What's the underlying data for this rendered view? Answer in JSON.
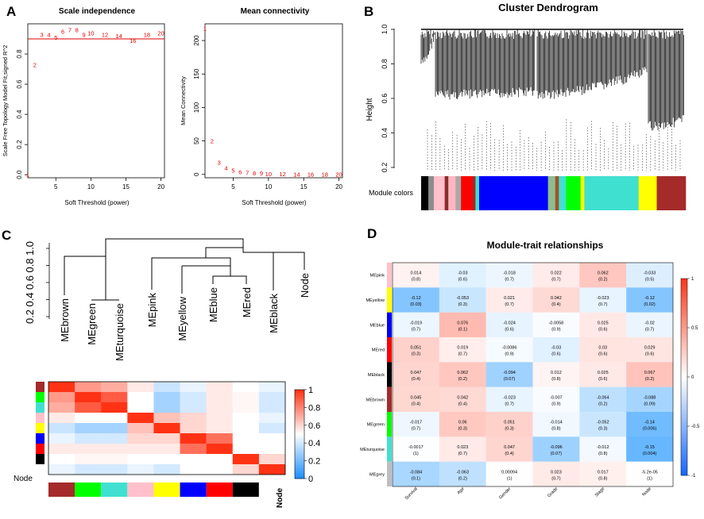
{
  "panels": {
    "A": {
      "letter": "A",
      "scale_independence": {
        "title": "Scale independence",
        "xlabel": "Soft Threshold (power)",
        "ylabel": "Scale Free Topology Model Fit,signed R^2"
      },
      "mean_connectivity": {
        "title": "Mean connectivity",
        "xlabel": "Soft Threshold (power)",
        "ylabel": "Mean Connectivity"
      }
    },
    "B": {
      "letter": "B",
      "title": "Cluster Dendrogram",
      "ylabel": "Height",
      "colors_label": "Module colors",
      "yticks": [
        "1.0",
        "0.8",
        "0.6",
        "0.4",
        "0.2"
      ]
    },
    "C": {
      "letter": "C",
      "dendro_yticks": [
        "1.0",
        "0.8",
        "0.6",
        "0.4",
        "0.2"
      ],
      "leaves": [
        "MEbrown",
        "MEgreen",
        "MEturquoise",
        "MEpink",
        "MEyellow",
        "MEblue",
        "MEred",
        "MEblack",
        "Node"
      ],
      "row_label": "Node",
      "col_label": "Node",
      "colorbar_ticks": [
        "1",
        "0.8",
        "0.6",
        "0.4",
        "0.2",
        "0"
      ]
    },
    "D": {
      "letter": "D",
      "title": "Module-trait relationships",
      "colorbar_ticks": [
        "1",
        "0.5",
        "0",
        "-0.5",
        "-1"
      ]
    }
  },
  "chart_data": [
    {
      "id": "scale_independence",
      "type": "scatter",
      "title": "Scale independence",
      "xlabel": "Soft Threshold (power)",
      "ylabel": "Scale Free Topology Model Fit,signed R^2",
      "xlim": [
        1,
        20.5
      ],
      "ylim": [
        -0.02,
        1.0
      ],
      "xticks": [
        5,
        10,
        15,
        20
      ],
      "yticks": [
        0.0,
        0.2,
        0.4,
        0.6,
        0.8
      ],
      "points": [
        {
          "label": "1",
          "x": 1,
          "y": 0.0
        },
        {
          "label": "2",
          "x": 2,
          "y": 0.73
        },
        {
          "label": "3",
          "x": 3,
          "y": 0.93
        },
        {
          "label": "4",
          "x": 4,
          "y": 0.93
        },
        {
          "label": "5",
          "x": 5,
          "y": 0.91
        },
        {
          "label": "6",
          "x": 6,
          "y": 0.95
        },
        {
          "label": "7",
          "x": 7,
          "y": 0.96
        },
        {
          "label": "8",
          "x": 8,
          "y": 0.96
        },
        {
          "label": "9",
          "x": 9,
          "y": 0.93
        },
        {
          "label": "10",
          "x": 10,
          "y": 0.94
        },
        {
          "label": "12",
          "x": 12,
          "y": 0.93
        },
        {
          "label": "14",
          "x": 14,
          "y": 0.92
        },
        {
          "label": "16",
          "x": 16,
          "y": 0.89
        },
        {
          "label": "18",
          "x": 18,
          "y": 0.93
        },
        {
          "label": "20",
          "x": 20,
          "y": 0.94
        }
      ],
      "hline": 0.9
    },
    {
      "id": "mean_connectivity",
      "type": "scatter",
      "title": "Mean connectivity",
      "xlabel": "Soft Threshold (power)",
      "ylabel": "Mean Connectivity",
      "xlim": [
        1,
        20.5
      ],
      "ylim": [
        -5,
        225
      ],
      "xticks": [
        5,
        10,
        15,
        20
      ],
      "yticks": [
        0,
        50,
        100,
        150,
        200
      ],
      "points": [
        {
          "label": "1",
          "x": 1,
          "y": 218
        },
        {
          "label": "2",
          "x": 2,
          "y": 50
        },
        {
          "label": "3",
          "x": 3,
          "y": 18
        },
        {
          "label": "4",
          "x": 4,
          "y": 10
        },
        {
          "label": "5",
          "x": 5,
          "y": 6
        },
        {
          "label": "6",
          "x": 6,
          "y": 4
        },
        {
          "label": "7",
          "x": 7,
          "y": 3
        },
        {
          "label": "8",
          "x": 8,
          "y": 2
        },
        {
          "label": "9",
          "x": 9,
          "y": 2
        },
        {
          "label": "10",
          "x": 10,
          "y": 1
        },
        {
          "label": "12",
          "x": 12,
          "y": 1
        },
        {
          "label": "14",
          "x": 14,
          "y": 0.5
        },
        {
          "label": "16",
          "x": 16,
          "y": 0.5
        },
        {
          "label": "18",
          "x": 18,
          "y": 0.3
        },
        {
          "label": "20",
          "x": 20,
          "y": 0.2
        }
      ]
    },
    {
      "id": "module_colors",
      "type": "bar",
      "title": "Module colors",
      "segments": [
        {
          "color": "#000000",
          "w": 2
        },
        {
          "color": "#8c8c8c",
          "w": 1.5
        },
        {
          "color": "#ffc0cb",
          "w": 3
        },
        {
          "color": "#8b2d2d",
          "w": 1
        },
        {
          "color": "#ffb6c1",
          "w": 2
        },
        {
          "color": "#a9a9a9",
          "w": 1.5
        },
        {
          "color": "#ff0000",
          "w": 3
        },
        {
          "color": "#b22222",
          "w": 1
        },
        {
          "color": "#40e0d0",
          "w": 1
        },
        {
          "color": "#0000ff",
          "w": 19
        },
        {
          "color": "#8fbc8f",
          "w": 2
        },
        {
          "color": "#a0522d",
          "w": 1
        },
        {
          "color": "#40e0d0",
          "w": 2
        },
        {
          "color": "#00ff00",
          "w": 4
        },
        {
          "color": "#ffff00",
          "w": 1
        },
        {
          "color": "#40e0d0",
          "w": 15
        },
        {
          "color": "#ffff00",
          "w": 5
        },
        {
          "color": "#a52a2a",
          "w": 8
        }
      ]
    },
    {
      "id": "eigengene_adjacency",
      "type": "heatmap",
      "rows": [
        "brown",
        "green",
        "turquoise",
        "pink",
        "yellow",
        "blue",
        "red",
        "black",
        "Node"
      ],
      "row_colors": [
        "#a52a2a",
        "#00ff00",
        "#40e0d0",
        "#ffc0cb",
        "#ffff00",
        "#0000ff",
        "#ff0000",
        "#000000",
        "#ffffff"
      ],
      "values": [
        [
          1.0,
          0.75,
          0.7,
          0.55,
          0.38,
          0.45,
          0.55,
          0.5,
          0.45
        ],
        [
          0.75,
          1.0,
          0.9,
          0.5,
          0.3,
          0.4,
          0.55,
          0.52,
          0.4
        ],
        [
          0.7,
          0.9,
          1.0,
          0.5,
          0.3,
          0.4,
          0.55,
          0.52,
          0.4
        ],
        [
          0.55,
          0.5,
          0.5,
          1.0,
          0.65,
          0.6,
          0.55,
          0.5,
          0.45
        ],
        [
          0.38,
          0.3,
          0.3,
          0.65,
          1.0,
          0.6,
          0.55,
          0.5,
          0.4
        ],
        [
          0.45,
          0.4,
          0.4,
          0.6,
          0.6,
          1.0,
          0.85,
          0.5,
          0.5
        ],
        [
          0.55,
          0.55,
          0.55,
          0.55,
          0.55,
          0.85,
          1.0,
          0.5,
          0.5
        ],
        [
          0.5,
          0.52,
          0.52,
          0.5,
          0.5,
          0.5,
          0.5,
          1.0,
          0.6
        ],
        [
          0.45,
          0.4,
          0.4,
          0.45,
          0.4,
          0.5,
          0.5,
          0.6,
          1.0
        ]
      ],
      "zlim": [
        0,
        1
      ]
    },
    {
      "id": "module_trait",
      "type": "heatmap",
      "title": "Module-trait relationships",
      "rows": [
        "MEpink",
        "MEyellow",
        "MEblue",
        "MEred",
        "MEblack",
        "MEbrown",
        "MEgreen",
        "MEturquoise",
        "MEgrey"
      ],
      "row_colors": [
        "#ffc0cb",
        "#ffff00",
        "#0000ff",
        "#ff0000",
        "#000000",
        "#a52a2a",
        "#00ff00",
        "#40e0d0",
        "#bebebe"
      ],
      "cols": [
        "Survival",
        "Age",
        "Gender",
        "Grade",
        "Stage",
        "Node"
      ],
      "cells": [
        [
          [
            "0.014",
            "(0.8)"
          ],
          [
            "-0.03",
            "(0.6)"
          ],
          [
            "-0.018",
            "(0.7)"
          ],
          [
            "0.022",
            "(0.7)"
          ],
          [
            "0.062",
            "(0.2)"
          ],
          [
            "-0.033",
            "(0.5)"
          ]
        ],
        [
          [
            "-0.12",
            "(0.03)"
          ],
          [
            "-0.053",
            "(0.3)"
          ],
          [
            "0.021",
            "(0.7)"
          ],
          [
            "0.042",
            "(0.4)"
          ],
          [
            "-0.023",
            "(0.7)"
          ],
          [
            "-0.12",
            "(0.02)"
          ]
        ],
        [
          [
            "-0.019",
            "(0.7)"
          ],
          [
            "0.076",
            "(0.1)"
          ],
          [
            "-0.024",
            "(0.6)"
          ],
          [
            "-0.0058",
            "(0.9)"
          ],
          [
            "0.025",
            "(0.6)"
          ],
          [
            "-0.02",
            "(0.7)"
          ]
        ],
        [
          [
            "0.051",
            "(0.3)"
          ],
          [
            "0.019",
            "(0.7)"
          ],
          [
            "-0.0086",
            "(0.9)"
          ],
          [
            "-0.03",
            "(0.6)"
          ],
          [
            "0.03",
            "(0.6)"
          ],
          [
            "0.029",
            "(0.6)"
          ]
        ],
        [
          [
            "0.047",
            "(0.4)"
          ],
          [
            "0.062",
            "(0.2)"
          ],
          [
            "-0.094",
            "(0.07)"
          ],
          [
            "0.012",
            "(0.8)"
          ],
          [
            "0.025",
            "(0.6)"
          ],
          [
            "0.067",
            "(0.2)"
          ]
        ],
        [
          [
            "0.045",
            "(0.4)"
          ],
          [
            "0.042",
            "(0.4)"
          ],
          [
            "-0.023",
            "(0.7)"
          ],
          [
            "-0.007",
            "(0.9)"
          ],
          [
            "-0.064",
            "(0.2)"
          ],
          [
            "-0.088",
            "(0.09)"
          ]
        ],
        [
          [
            "-0.017",
            "(0.7)"
          ],
          [
            "0.06",
            "(0.3)"
          ],
          [
            "0.051",
            "(0.3)"
          ],
          [
            "-0.014",
            "(0.8)"
          ],
          [
            "-0.052",
            "(0.3)"
          ],
          [
            "-0.14",
            "(0.006)"
          ]
        ],
        [
          [
            "-0.0017",
            "(1)"
          ],
          [
            "0.023",
            "(0.7)"
          ],
          [
            "0.047",
            "(0.4)"
          ],
          [
            "-0.096",
            "(0.07)"
          ],
          [
            "-0.012",
            "(0.8)"
          ],
          [
            "-0.15",
            "(0.004)"
          ]
        ],
        [
          [
            "-0.084",
            "(0.1)"
          ],
          [
            "-0.063",
            "(0.2)"
          ],
          [
            "0.00094",
            "(1)"
          ],
          [
            "0.023",
            "(0.7)"
          ],
          [
            "0.017",
            "(0.8)"
          ],
          [
            "-5.2e-05",
            "(1)"
          ]
        ]
      ],
      "zlim": [
        -1,
        1
      ]
    }
  ]
}
